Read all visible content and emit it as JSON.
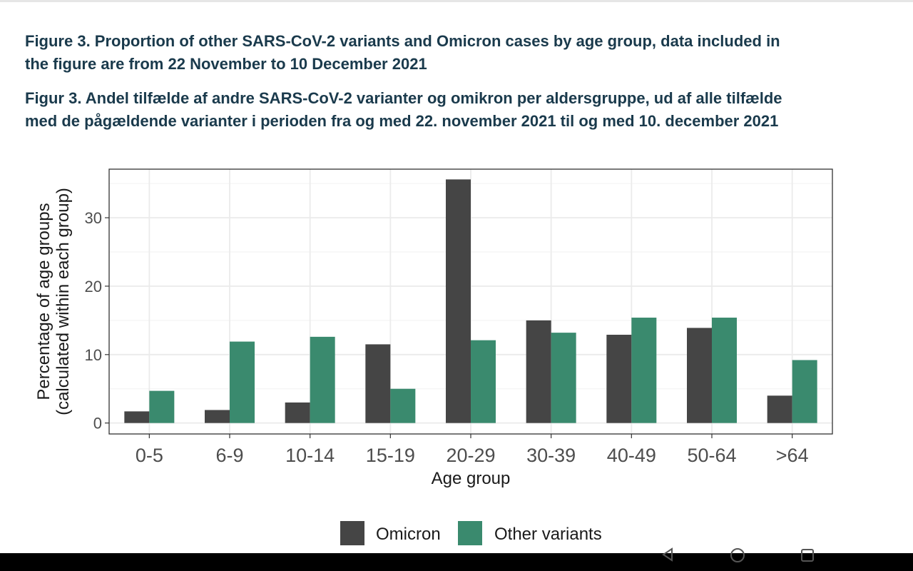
{
  "captions": {
    "english": "Figure 3. Proportion of other SARS-CoV-2 variants and Omicron cases by age group, data included in the figure are from 22 November to 10 December 2021",
    "danish": "Figur 3.  Andel tilfælde af andre SARS-CoV-2 varianter og omikron per aldersgruppe, ud af alle tilfælde med de pågældende varianter i perioden fra og med 22. november 2021 til og med 10. december 2021"
  },
  "chart_data": {
    "type": "bar",
    "xlabel": "Age group",
    "ylabel_line1": "Percentage of age groups",
    "ylabel_line2": "(calculated within each group)",
    "categories": [
      "0-5",
      "6-9",
      "10-14",
      "15-19",
      "20-29",
      "30-39",
      "40-49",
      "50-64",
      ">64"
    ],
    "series": [
      {
        "name": "Omicron",
        "color": "#454545",
        "values": [
          1.7,
          1.9,
          3.0,
          11.5,
          35.6,
          15.0,
          12.9,
          13.9,
          4.0
        ]
      },
      {
        "name": "Other variants",
        "color": "#3a8a6e",
        "values": [
          4.7,
          11.9,
          12.6,
          5.0,
          12.1,
          13.2,
          15.4,
          15.4,
          9.2
        ]
      }
    ],
    "ylim": [
      -1.6,
      37.1
    ],
    "yticks": [
      0,
      10,
      20,
      30
    ],
    "grid": true,
    "legend_position": "bottom",
    "panel_background": "#ffffff",
    "grid_color": "#ebebeb"
  },
  "navbar": {
    "icons": [
      "back-icon",
      "home-icon",
      "recents-icon"
    ]
  }
}
